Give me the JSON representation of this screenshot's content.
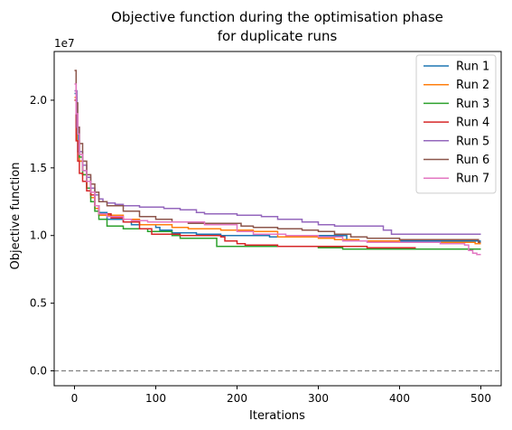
{
  "chart_data": {
    "type": "line",
    "title": "Objective function during the optimisation phase\nfor duplicate runs",
    "title_lines": [
      "Objective function during the optimisation phase",
      "for duplicate runs"
    ],
    "xlabel": "Iterations",
    "ylabel": "Objective function",
    "y_offset_label": "1e7",
    "xlim": [
      -25,
      525
    ],
    "ylim": [
      -0.11,
      2.36
    ],
    "x_ticks": [
      0,
      100,
      200,
      300,
      400,
      500
    ],
    "x_tick_labels": [
      "0",
      "100",
      "200",
      "300",
      "400",
      "500"
    ],
    "y_ticks": [
      0.0,
      0.5,
      1.0,
      1.5,
      2.0
    ],
    "y_tick_labels": [
      "0.0",
      "0.5",
      "1.0",
      "1.5",
      "2.0"
    ],
    "reference_line": {
      "y": 0.0,
      "style": "dashed",
      "color": "#808080"
    },
    "grid": false,
    "legend_position": "top-right",
    "series": [
      {
        "name": "Run 1",
        "color": "#1f77b4",
        "points": [
          [
            0,
            2.05
          ],
          [
            2,
            1.8
          ],
          [
            4,
            1.62
          ],
          [
            6,
            1.55
          ],
          [
            10,
            1.48
          ],
          [
            15,
            1.4
          ],
          [
            20,
            1.3
          ],
          [
            25,
            1.22
          ],
          [
            30,
            1.17
          ],
          [
            40,
            1.12
          ],
          [
            60,
            1.1
          ],
          [
            70,
            1.08
          ],
          [
            100,
            1.06
          ],
          [
            105,
            1.04
          ],
          [
            120,
            1.02
          ],
          [
            150,
            1.01
          ],
          [
            180,
            1.0
          ],
          [
            240,
            0.99
          ],
          [
            280,
            1.0
          ],
          [
            330,
            1.0
          ],
          [
            335,
            0.97
          ],
          [
            340,
            0.96
          ],
          [
            500,
            0.96
          ]
        ]
      },
      {
        "name": "Run 2",
        "color": "#ff7f0e",
        "points": [
          [
            0,
            2.02
          ],
          [
            3,
            1.7
          ],
          [
            6,
            1.55
          ],
          [
            10,
            1.45
          ],
          [
            15,
            1.35
          ],
          [
            20,
            1.28
          ],
          [
            25,
            1.2
          ],
          [
            30,
            1.15
          ],
          [
            60,
            1.12
          ],
          [
            80,
            1.08
          ],
          [
            120,
            1.06
          ],
          [
            140,
            1.05
          ],
          [
            180,
            1.04
          ],
          [
            220,
            1.03
          ],
          [
            250,
            0.99
          ],
          [
            300,
            0.98
          ],
          [
            320,
            0.97
          ],
          [
            350,
            0.96
          ],
          [
            400,
            0.95
          ],
          [
            490,
            0.95
          ],
          [
            493,
            0.94
          ],
          [
            500,
            0.94
          ]
        ]
      },
      {
        "name": "Run 3",
        "color": "#2ca02c",
        "points": [
          [
            0,
            2.0
          ],
          [
            3,
            1.75
          ],
          [
            6,
            1.58
          ],
          [
            10,
            1.45
          ],
          [
            15,
            1.35
          ],
          [
            20,
            1.25
          ],
          [
            25,
            1.18
          ],
          [
            30,
            1.12
          ],
          [
            40,
            1.07
          ],
          [
            60,
            1.05
          ],
          [
            90,
            1.03
          ],
          [
            120,
            1.0
          ],
          [
            130,
            0.98
          ],
          [
            170,
            0.98
          ],
          [
            175,
            0.92
          ],
          [
            250,
            0.92
          ],
          [
            300,
            0.91
          ],
          [
            330,
            0.9
          ],
          [
            400,
            0.9
          ],
          [
            500,
            0.9
          ]
        ]
      },
      {
        "name": "Run 4",
        "color": "#d62728",
        "points": [
          [
            0,
            2.0
          ],
          [
            2,
            1.7
          ],
          [
            4,
            1.55
          ],
          [
            6,
            1.46
          ],
          [
            10,
            1.4
          ],
          [
            15,
            1.33
          ],
          [
            20,
            1.3
          ],
          [
            25,
            1.22
          ],
          [
            30,
            1.16
          ],
          [
            45,
            1.13
          ],
          [
            60,
            1.1
          ],
          [
            80,
            1.05
          ],
          [
            95,
            1.01
          ],
          [
            130,
            1.0
          ],
          [
            180,
            0.99
          ],
          [
            185,
            0.96
          ],
          [
            200,
            0.94
          ],
          [
            210,
            0.93
          ],
          [
            250,
            0.92
          ],
          [
            350,
            0.92
          ],
          [
            360,
            0.91
          ],
          [
            420,
            0.91
          ]
        ]
      },
      {
        "name": "Run 5",
        "color": "#9467bd",
        "points": [
          [
            0,
            2.07
          ],
          [
            3,
            1.8
          ],
          [
            6,
            1.62
          ],
          [
            10,
            1.52
          ],
          [
            15,
            1.43
          ],
          [
            20,
            1.35
          ],
          [
            25,
            1.3
          ],
          [
            30,
            1.27
          ],
          [
            35,
            1.25
          ],
          [
            40,
            1.24
          ],
          [
            50,
            1.23
          ],
          [
            60,
            1.22
          ],
          [
            80,
            1.21
          ],
          [
            110,
            1.2
          ],
          [
            130,
            1.19
          ],
          [
            150,
            1.17
          ],
          [
            160,
            1.16
          ],
          [
            200,
            1.15
          ],
          [
            230,
            1.14
          ],
          [
            250,
            1.12
          ],
          [
            280,
            1.1
          ],
          [
            300,
            1.08
          ],
          [
            320,
            1.07
          ],
          [
            380,
            1.04
          ],
          [
            390,
            1.01
          ],
          [
            500,
            1.01
          ]
        ]
      },
      {
        "name": "Run 6",
        "color": "#8c564b",
        "points": [
          [
            0,
            2.22
          ],
          [
            2,
            1.98
          ],
          [
            4,
            1.8
          ],
          [
            6,
            1.68
          ],
          [
            10,
            1.55
          ],
          [
            15,
            1.45
          ],
          [
            20,
            1.38
          ],
          [
            25,
            1.32
          ],
          [
            30,
            1.25
          ],
          [
            40,
            1.22
          ],
          [
            60,
            1.18
          ],
          [
            80,
            1.14
          ],
          [
            100,
            1.12
          ],
          [
            120,
            1.1
          ],
          [
            140,
            1.09
          ],
          [
            200,
            1.09
          ],
          [
            205,
            1.07
          ],
          [
            220,
            1.06
          ],
          [
            250,
            1.05
          ],
          [
            280,
            1.04
          ],
          [
            300,
            1.03
          ],
          [
            320,
            1.01
          ],
          [
            340,
            0.99
          ],
          [
            360,
            0.98
          ],
          [
            400,
            0.97
          ],
          [
            450,
            0.97
          ],
          [
            495,
            0.97
          ],
          [
            497,
            0.95
          ],
          [
            500,
            0.95
          ]
        ]
      },
      {
        "name": "Run 7",
        "color": "#e377c2",
        "points": [
          [
            0,
            2.12
          ],
          [
            2,
            1.9
          ],
          [
            4,
            1.75
          ],
          [
            6,
            1.6
          ],
          [
            10,
            1.48
          ],
          [
            15,
            1.4
          ],
          [
            20,
            1.32
          ],
          [
            25,
            1.22
          ],
          [
            30,
            1.16
          ],
          [
            40,
            1.14
          ],
          [
            60,
            1.12
          ],
          [
            70,
            1.11
          ],
          [
            90,
            1.1
          ],
          [
            100,
            1.1
          ],
          [
            130,
            1.1
          ],
          [
            160,
            1.08
          ],
          [
            200,
            1.03
          ],
          [
            220,
            1.01
          ],
          [
            260,
            1.0
          ],
          [
            300,
            0.99
          ],
          [
            330,
            0.96
          ],
          [
            360,
            0.95
          ],
          [
            400,
            0.95
          ],
          [
            450,
            0.94
          ],
          [
            480,
            0.93
          ],
          [
            485,
            0.89
          ],
          [
            490,
            0.87
          ],
          [
            495,
            0.86
          ],
          [
            500,
            0.86
          ]
        ]
      }
    ]
  }
}
